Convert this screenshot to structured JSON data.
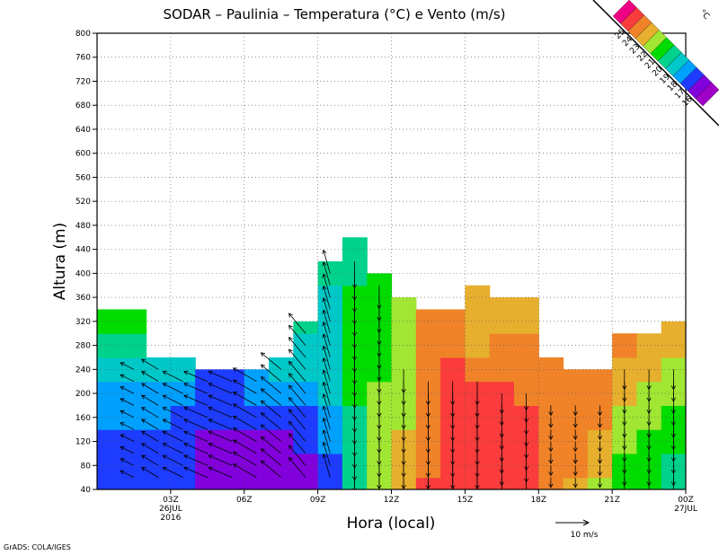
{
  "chart_data": {
    "type": "heatmap",
    "title": "SODAR – Paulinia – Temperatura (°C) e Vento (m/s)",
    "xlabel": "Hora (local)",
    "ylabel": "Altura (m)",
    "x_tick_labels": [
      {
        "hour": 3,
        "lines": [
          "03Z",
          "26JUL",
          "2016"
        ]
      },
      {
        "hour": 6,
        "lines": [
          "06Z"
        ]
      },
      {
        "hour": 9,
        "lines": [
          "09Z"
        ]
      },
      {
        "hour": 12,
        "lines": [
          "12Z"
        ]
      },
      {
        "hour": 15,
        "lines": [
          "15Z"
        ]
      },
      {
        "hour": 18,
        "lines": [
          "18Z"
        ]
      },
      {
        "hour": 21,
        "lines": [
          "21Z"
        ]
      },
      {
        "hour": 24,
        "lines": [
          "00Z",
          "27JUL"
        ]
      }
    ],
    "xlim_hours": [
      0,
      24
    ],
    "ylim": [
      40,
      800
    ],
    "y_ticks": [
      40,
      80,
      120,
      160,
      200,
      240,
      280,
      320,
      360,
      400,
      440,
      480,
      520,
      560,
      600,
      640,
      680,
      720,
      760,
      800
    ],
    "grid": true,
    "legend_label": "°C",
    "legend_levels": [
      16,
      17,
      18,
      19,
      20,
      21,
      22,
      23,
      24,
      25
    ],
    "legend_colors": [
      "#a000c8",
      "#8200dc",
      "#1e3cff",
      "#00a0ff",
      "#00c8c8",
      "#00d28c",
      "#00dc00",
      "#a0e632",
      "#e6af2d",
      "#f08228",
      "#fa3c3c",
      "#f00082"
    ],
    "wind_reference": {
      "speed": 10,
      "unit": "m/s",
      "label": "10 m/s"
    },
    "columns": [
      {
        "hour": 0.5,
        "top": 340,
        "temps": [
          17.5,
          17.5,
          17.5,
          18,
          18.5,
          19,
          20.5,
          21,
          22.5
        ]
      },
      {
        "hour": 1.5,
        "top": 340,
        "temps": [
          17.5,
          17.5,
          17.5,
          18,
          18.5,
          19,
          20,
          21,
          22.5
        ]
      },
      {
        "hour": 2.5,
        "top": 260,
        "temps": [
          17.5,
          17,
          17.5,
          18,
          18,
          19
        ]
      },
      {
        "hour": 3.5,
        "top": 260,
        "temps": [
          17,
          17,
          17,
          17.5,
          18,
          19
        ]
      },
      {
        "hour": 4.5,
        "top": 240,
        "temps": [
          16.8,
          16.8,
          16.8,
          17,
          17.5
        ]
      },
      {
        "hour": 5.5,
        "top": 240,
        "temps": [
          16.5,
          16.8,
          16.8,
          17,
          17.5
        ]
      },
      {
        "hour": 6.5,
        "top": 240,
        "temps": [
          16.5,
          16.8,
          16.8,
          17,
          18
        ]
      },
      {
        "hour": 7.5,
        "top": 260,
        "temps": [
          16.5,
          16.8,
          16.8,
          17,
          18,
          19
        ]
      },
      {
        "hour": 8.5,
        "top": 320,
        "temps": [
          16.8,
          16.8,
          17,
          17.5,
          18,
          19,
          19.5,
          20
        ]
      },
      {
        "hour": 9.5,
        "top": 420,
        "temps": [
          17,
          17.5,
          18,
          18.5,
          19,
          19,
          19.5,
          19.5,
          19.5,
          20,
          20.5
        ]
      },
      {
        "hour": 10.5,
        "top": 440,
        "temps": [
          20.5,
          20.5,
          20.5,
          20.5,
          21,
          21,
          21,
          21,
          21,
          20.5,
          20.5,
          20.5
        ]
      },
      {
        "hour": 11.5,
        "top": 400,
        "temps": [
          22.5,
          22.5,
          22,
          22,
          22,
          21.5,
          21.5,
          21.5,
          21,
          21
        ]
      },
      {
        "hour": 12.5,
        "top": 360,
        "temps": [
          23.5,
          23,
          23,
          22.5,
          22.5,
          22.5,
          22.5,
          22.5,
          22
        ]
      },
      {
        "hour": 13.5,
        "top": 340,
        "temps": [
          25,
          24.5,
          24.5,
          24.5,
          24.5,
          24,
          24,
          24
        ]
      },
      {
        "hour": 14.5,
        "top": 340,
        "temps": [
          25.5,
          25.5,
          25.5,
          25.5,
          25.5,
          25,
          24.5,
          24
        ]
      },
      {
        "hour": 15.5,
        "top": 380,
        "temps": [
          25.5,
          25.5,
          25.5,
          25.5,
          25,
          24.5,
          23.5,
          23.5,
          23,
          23.5
        ]
      },
      {
        "hour": 16.5,
        "top": 360,
        "temps": [
          25.5,
          25.5,
          25.5,
          25.5,
          25,
          24.5,
          24,
          23.5,
          23.5
        ]
      },
      {
        "hour": 17.5,
        "top": 360,
        "temps": [
          25.5,
          25.5,
          25.5,
          25,
          24.5,
          24.5,
          24,
          23.5,
          23.5
        ]
      },
      {
        "hour": 18.5,
        "top": 260,
        "temps": [
          24,
          24.5,
          24.5,
          24.5,
          24.5,
          24.5
        ]
      },
      {
        "hour": 19.5,
        "top": 240,
        "temps": [
          23,
          24,
          24,
          24.5,
          24.5
        ]
      },
      {
        "hour": 20.5,
        "top": 240,
        "temps": [
          22.5,
          23,
          23.5,
          24,
          24.5
        ]
      },
      {
        "hour": 21.5,
        "top": 300,
        "temps": [
          21,
          21.5,
          22,
          22.5,
          23,
          23.5,
          24
        ]
      },
      {
        "hour": 22.5,
        "top": 300,
        "temps": [
          21,
          21,
          21.5,
          22,
          22.5,
          23,
          23.5
        ]
      },
      {
        "hour": 23.5,
        "top": 320,
        "temps": [
          20.5,
          20.5,
          21,
          21.5,
          22.5,
          22.5,
          23,
          23.5
        ]
      }
    ],
    "wind": [
      {
        "hour": 1.5,
        "u": -4,
        "v": 2,
        "top": 240
      },
      {
        "hour": 2.5,
        "u": -5,
        "v": 3,
        "top": 240
      },
      {
        "hour": 3.5,
        "u": -6,
        "v": 3,
        "top": 220
      },
      {
        "hour": 4.5,
        "u": -7,
        "v": 3,
        "top": 220
      },
      {
        "hour": 5.5,
        "u": -7,
        "v": 3,
        "top": 220
      },
      {
        "hour": 6.5,
        "u": -7,
        "v": 4,
        "top": 220
      },
      {
        "hour": 7.5,
        "u": -6,
        "v": 5,
        "top": 240
      },
      {
        "hour": 8.5,
        "u": -5,
        "v": 6,
        "top": 300
      },
      {
        "hour": 9.5,
        "u": -2,
        "v": 7,
        "top": 400
      },
      {
        "hour": 10.5,
        "u": 0,
        "v": -8,
        "top": 420
      },
      {
        "hour": 11.5,
        "u": 0,
        "v": -7,
        "top": 380
      },
      {
        "hour": 12.5,
        "u": 0,
        "v": -7,
        "top": 240
      },
      {
        "hour": 13.5,
        "u": 0,
        "v": -7,
        "top": 220
      },
      {
        "hour": 14.5,
        "u": 0,
        "v": -7,
        "top": 220
      },
      {
        "hour": 15.5,
        "u": 0,
        "v": -7,
        "top": 220
      },
      {
        "hour": 16.5,
        "u": 0,
        "v": -6,
        "top": 200
      },
      {
        "hour": 17.5,
        "u": 0,
        "v": -5,
        "top": 200
      },
      {
        "hour": 18.5,
        "u": 0,
        "v": -3,
        "top": 180
      },
      {
        "hour": 19.5,
        "u": 0,
        "v": -3,
        "top": 180
      },
      {
        "hour": 20.5,
        "u": 0,
        "v": -3,
        "top": 180
      },
      {
        "hour": 21.5,
        "u": 0,
        "v": -6,
        "top": 240
      },
      {
        "hour": 22.5,
        "u": 0,
        "v": -6,
        "top": 240
      },
      {
        "hour": 23.5,
        "u": 0,
        "v": -6,
        "top": 240
      }
    ]
  },
  "footer": {
    "credit": "GrADS: COLA/IGES"
  }
}
